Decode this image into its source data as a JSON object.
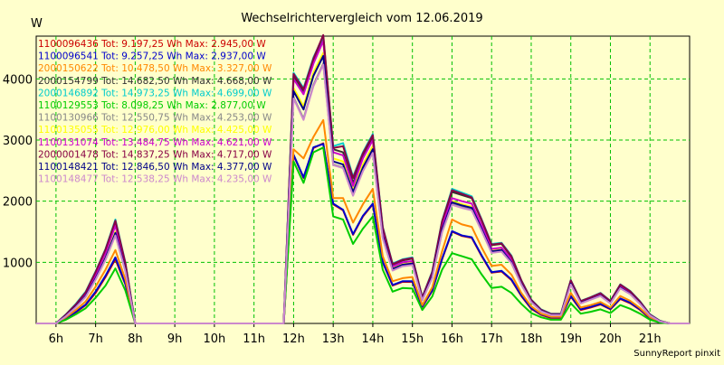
{
  "chart_data": {
    "type": "line",
    "title": "Wechselrichtervergleich vom 12.06.2019",
    "ylabel": "W",
    "xlabel": "",
    "footer": "SunnyReport pinxit",
    "ylim": [
      0,
      4700
    ],
    "xlim": [
      5.5,
      22
    ],
    "grid": true,
    "legend_position": "top-left",
    "y_ticks": [
      {
        "value": 1000,
        "label": "1000"
      },
      {
        "value": 2000,
        "label": "2000"
      },
      {
        "value": 3000,
        "label": "3000"
      },
      {
        "value": 4000,
        "label": "4000"
      }
    ],
    "x_ticks": [
      {
        "value": 6,
        "label": "6h"
      },
      {
        "value": 7,
        "label": "7h"
      },
      {
        "value": 8,
        "label": "8h"
      },
      {
        "value": 9,
        "label": "9h"
      },
      {
        "value": 10,
        "label": "10h"
      },
      {
        "value": 11,
        "label": "11h"
      },
      {
        "value": 12,
        "label": "12h"
      },
      {
        "value": 13,
        "label": "13h"
      },
      {
        "value": 14,
        "label": "14h"
      },
      {
        "value": 15,
        "label": "15h"
      },
      {
        "value": 16,
        "label": "16h"
      },
      {
        "value": 17,
        "label": "17h"
      },
      {
        "value": 18,
        "label": "18h"
      },
      {
        "value": 19,
        "label": "19h"
      },
      {
        "value": 20,
        "label": "20h"
      },
      {
        "value": 21,
        "label": "21h"
      }
    ],
    "x": [
      5.5,
      5.75,
      6.0,
      6.25,
      6.5,
      6.75,
      7.0,
      7.25,
      7.5,
      7.75,
      8.0,
      8.25,
      8.5,
      8.75,
      9.0,
      9.25,
      9.5,
      9.75,
      10.0,
      10.25,
      10.5,
      10.75,
      11.0,
      11.25,
      11.5,
      11.75,
      12.0,
      12.25,
      12.5,
      12.75,
      13.0,
      13.25,
      13.5,
      13.75,
      14.0,
      14.25,
      14.5,
      14.75,
      15.0,
      15.25,
      15.5,
      15.75,
      16.0,
      16.25,
      16.5,
      16.75,
      17.0,
      17.25,
      17.5,
      17.75,
      18.0,
      18.25,
      18.5,
      18.75,
      19.0,
      19.25,
      19.5,
      19.75,
      20.0,
      20.25,
      20.5,
      20.75,
      21.0,
      21.25,
      21.5,
      21.75,
      22.0
    ],
    "series": [
      {
        "name": "1100096436 Tot: 9.197,25 Wh Max: 2.945,00 W",
        "color": "#cc0000",
        "values": [
          0,
          0,
          0,
          80,
          180,
          300,
          500,
          760,
          1050,
          640,
          0,
          0,
          0,
          0,
          0,
          0,
          0,
          0,
          0,
          0,
          0,
          0,
          0,
          0,
          0,
          0,
          2750,
          2380,
          2870,
          2945,
          1950,
          1850,
          1450,
          1750,
          1950,
          1000,
          620,
          680,
          680,
          270,
          530,
          1050,
          1500,
          1430,
          1400,
          1100,
          830,
          850,
          710,
          450,
          240,
          140,
          90,
          90,
          440,
          220,
          260,
          310,
          230,
          400,
          330,
          220,
          80,
          20,
          0,
          0,
          0
        ]
      },
      {
        "name": "1100096541 Tot: 9.257,25 Wh Max: 2.937,00 W",
        "color": "#0000cc",
        "values": [
          0,
          0,
          0,
          90,
          190,
          310,
          520,
          780,
          1080,
          650,
          0,
          0,
          0,
          0,
          0,
          0,
          0,
          0,
          0,
          0,
          0,
          0,
          0,
          0,
          0,
          0,
          2760,
          2390,
          2880,
          2937,
          1960,
          1860,
          1460,
          1760,
          1960,
          1010,
          630,
          690,
          690,
          280,
          540,
          1060,
          1510,
          1440,
          1410,
          1110,
          840,
          860,
          720,
          460,
          250,
          150,
          100,
          100,
          450,
          230,
          270,
          320,
          240,
          410,
          340,
          230,
          90,
          25,
          0,
          0,
          0
        ]
      },
      {
        "name": "2000150622 Tot: 10.478,50 Wh Max: 3.327,00 W",
        "color": "#ff8800",
        "values": [
          0,
          0,
          0,
          100,
          220,
          360,
          600,
          880,
          1200,
          720,
          0,
          0,
          0,
          0,
          0,
          0,
          0,
          0,
          0,
          0,
          0,
          0,
          0,
          0,
          0,
          0,
          2850,
          2700,
          3050,
          3327,
          2050,
          2050,
          1650,
          1950,
          2200,
          1100,
          690,
          740,
          760,
          300,
          590,
          1180,
          1700,
          1620,
          1580,
          1240,
          940,
          960,
          800,
          500,
          280,
          160,
          110,
          110,
          500,
          260,
          300,
          350,
          260,
          450,
          370,
          250,
          100,
          30,
          0,
          0,
          0
        ]
      },
      {
        "name": "2000154799 Tot: 14.682,50 Wh Max: 4.668,00 W",
        "color": "#333333",
        "values": [
          0,
          0,
          0,
          140,
          300,
          500,
          820,
          1200,
          1650,
          980,
          0,
          0,
          0,
          0,
          0,
          0,
          0,
          0,
          0,
          0,
          0,
          0,
          0,
          0,
          0,
          0,
          4050,
          3800,
          4300,
          4668,
          2850,
          2800,
          2300,
          2750,
          3050,
          1550,
          960,
          1030,
          1060,
          420,
          830,
          1650,
          2150,
          2100,
          2050,
          1680,
          1280,
          1300,
          1090,
          700,
          380,
          220,
          150,
          150,
          700,
          360,
          420,
          490,
          360,
          630,
          520,
          350,
          140,
          40,
          0,
          0,
          0
        ]
      },
      {
        "name": "2000146892 Tot: 14.973,25 Wh Max: 4.699,00 W",
        "color": "#00cccc",
        "values": [
          0,
          0,
          0,
          150,
          320,
          520,
          850,
          1220,
          1700,
          1000,
          0,
          0,
          0,
          0,
          0,
          0,
          0,
          0,
          0,
          0,
          0,
          0,
          0,
          0,
          0,
          0,
          4100,
          3850,
          4350,
          4699,
          2900,
          2950,
          2400,
          2800,
          3100,
          1580,
          980,
          1050,
          1080,
          430,
          850,
          1680,
          2200,
          2140,
          2080,
          1700,
          1300,
          1320,
          1110,
          710,
          390,
          230,
          160,
          160,
          710,
          370,
          430,
          500,
          370,
          640,
          530,
          360,
          150,
          45,
          0,
          0,
          0
        ]
      },
      {
        "name": "1100129553 Tot: 8.098,25 Wh Max: 2.877,00 W",
        "color": "#00cc00",
        "values": [
          0,
          0,
          0,
          60,
          150,
          250,
          420,
          620,
          900,
          540,
          0,
          0,
          0,
          0,
          0,
          0,
          0,
          0,
          0,
          0,
          0,
          0,
          0,
          0,
          0,
          0,
          2650,
          2300,
          2800,
          2877,
          1750,
          1700,
          1300,
          1550,
          1750,
          880,
          520,
          580,
          570,
          220,
          440,
          880,
          1150,
          1100,
          1050,
          800,
          580,
          600,
          500,
          320,
          170,
          100,
          60,
          60,
          330,
          160,
          190,
          230,
          170,
          300,
          240,
          160,
          60,
          15,
          0,
          0,
          0
        ]
      },
      {
        "name": "1100130966 Tot: 12.550,75 Wh Max: 4.253,00 W",
        "color": "#888888",
        "values": [
          0,
          0,
          0,
          120,
          270,
          440,
          720,
          1050,
          1450,
          860,
          0,
          0,
          0,
          0,
          0,
          0,
          0,
          0,
          0,
          0,
          0,
          0,
          0,
          0,
          0,
          0,
          3700,
          3350,
          3900,
          4253,
          2600,
          2550,
          2100,
          2500,
          2800,
          1400,
          870,
          940,
          960,
          380,
          750,
          1500,
          1950,
          1900,
          1860,
          1520,
          1160,
          1180,
          990,
          640,
          350,
          200,
          140,
          140,
          640,
          330,
          390,
          450,
          330,
          580,
          480,
          320,
          130,
          35,
          0,
          0,
          0
        ]
      },
      {
        "name": "1100135055 Tot: 12.976,00 Wh Max: 4.425,00 W",
        "color": "#ffff00",
        "values": [
          0,
          0,
          0,
          125,
          280,
          460,
          750,
          1090,
          1500,
          890,
          0,
          0,
          0,
          0,
          0,
          0,
          0,
          0,
          0,
          0,
          0,
          0,
          0,
          0,
          0,
          0,
          3850,
          3550,
          4100,
          4425,
          2700,
          2650,
          2180,
          2600,
          2900,
          1450,
          900,
          970,
          990,
          390,
          780,
          1550,
          2000,
          1950,
          1910,
          1560,
          1190,
          1210,
          1020,
          660,
          360,
          210,
          145,
          145,
          660,
          340,
          400,
          460,
          340,
          590,
          490,
          330,
          135,
          38,
          0,
          0,
          0
        ]
      },
      {
        "name": "1100131074 Tot: 13.484,75 Wh Max: 4.621,00 W",
        "color": "#cc00cc",
        "values": [
          0,
          0,
          0,
          130,
          290,
          480,
          790,
          1150,
          1600,
          940,
          0,
          0,
          0,
          0,
          0,
          0,
          0,
          0,
          0,
          0,
          0,
          0,
          0,
          0,
          0,
          0,
          4000,
          3750,
          4250,
          4621,
          2800,
          2750,
          2250,
          2700,
          3000,
          1500,
          930,
          1000,
          1020,
          400,
          800,
          1600,
          2050,
          2000,
          1960,
          1600,
          1220,
          1240,
          1050,
          680,
          370,
          215,
          150,
          150,
          680,
          350,
          410,
          470,
          350,
          610,
          500,
          340,
          138,
          40,
          0,
          0,
          0
        ]
      },
      {
        "name": "2000001478 Tot: 14.837,25 Wh Max: 4.717,00 W",
        "color": "#880044",
        "values": [
          0,
          0,
          0,
          145,
          310,
          510,
          840,
          1210,
          1680,
          990,
          0,
          0,
          0,
          0,
          0,
          0,
          0,
          0,
          0,
          0,
          0,
          0,
          0,
          0,
          0,
          0,
          4080,
          3830,
          4330,
          4717,
          2870,
          2900,
          2380,
          2780,
          3080,
          1570,
          970,
          1040,
          1070,
          425,
          840,
          1670,
          2180,
          2120,
          2060,
          1690,
          1290,
          1310,
          1100,
          705,
          385,
          225,
          155,
          155,
          705,
          365,
          425,
          495,
          365,
          635,
          525,
          355,
          145,
          42,
          0,
          0,
          0
        ]
      },
      {
        "name": "1100148421 Tot: 12.846,50 Wh Max: 4.377,00 W",
        "color": "#000088",
        "values": [
          0,
          0,
          0,
          122,
          275,
          450,
          735,
          1070,
          1480,
          875,
          0,
          0,
          0,
          0,
          0,
          0,
          0,
          0,
          0,
          0,
          0,
          0,
          0,
          0,
          0,
          0,
          3800,
          3500,
          4050,
          4377,
          2650,
          2600,
          2150,
          2550,
          2850,
          1430,
          890,
          960,
          980,
          385,
          770,
          1530,
          1980,
          1930,
          1890,
          1540,
          1180,
          1200,
          1000,
          650,
          355,
          205,
          142,
          142,
          650,
          335,
          395,
          455,
          335,
          585,
          485,
          325,
          132,
          36,
          0,
          0,
          0
        ]
      },
      {
        "name": "1100148477 Tot: 12.538,25 Wh Max: 4.235,00 W",
        "color": "#cc88cc",
        "values": [
          0,
          0,
          0,
          118,
          265,
          435,
          715,
          1040,
          1440,
          855,
          0,
          0,
          0,
          0,
          0,
          0,
          0,
          0,
          0,
          0,
          0,
          0,
          0,
          0,
          0,
          0,
          3680,
          3330,
          3880,
          4235,
          2590,
          2540,
          2090,
          2490,
          2790,
          1395,
          865,
          935,
          955,
          378,
          745,
          1490,
          1940,
          1890,
          1850,
          1510,
          1155,
          1175,
          985,
          635,
          348,
          198,
          138,
          138,
          635,
          328,
          388,
          448,
          328,
          575,
          478,
          318,
          128,
          34,
          0,
          0,
          0
        ]
      }
    ]
  }
}
